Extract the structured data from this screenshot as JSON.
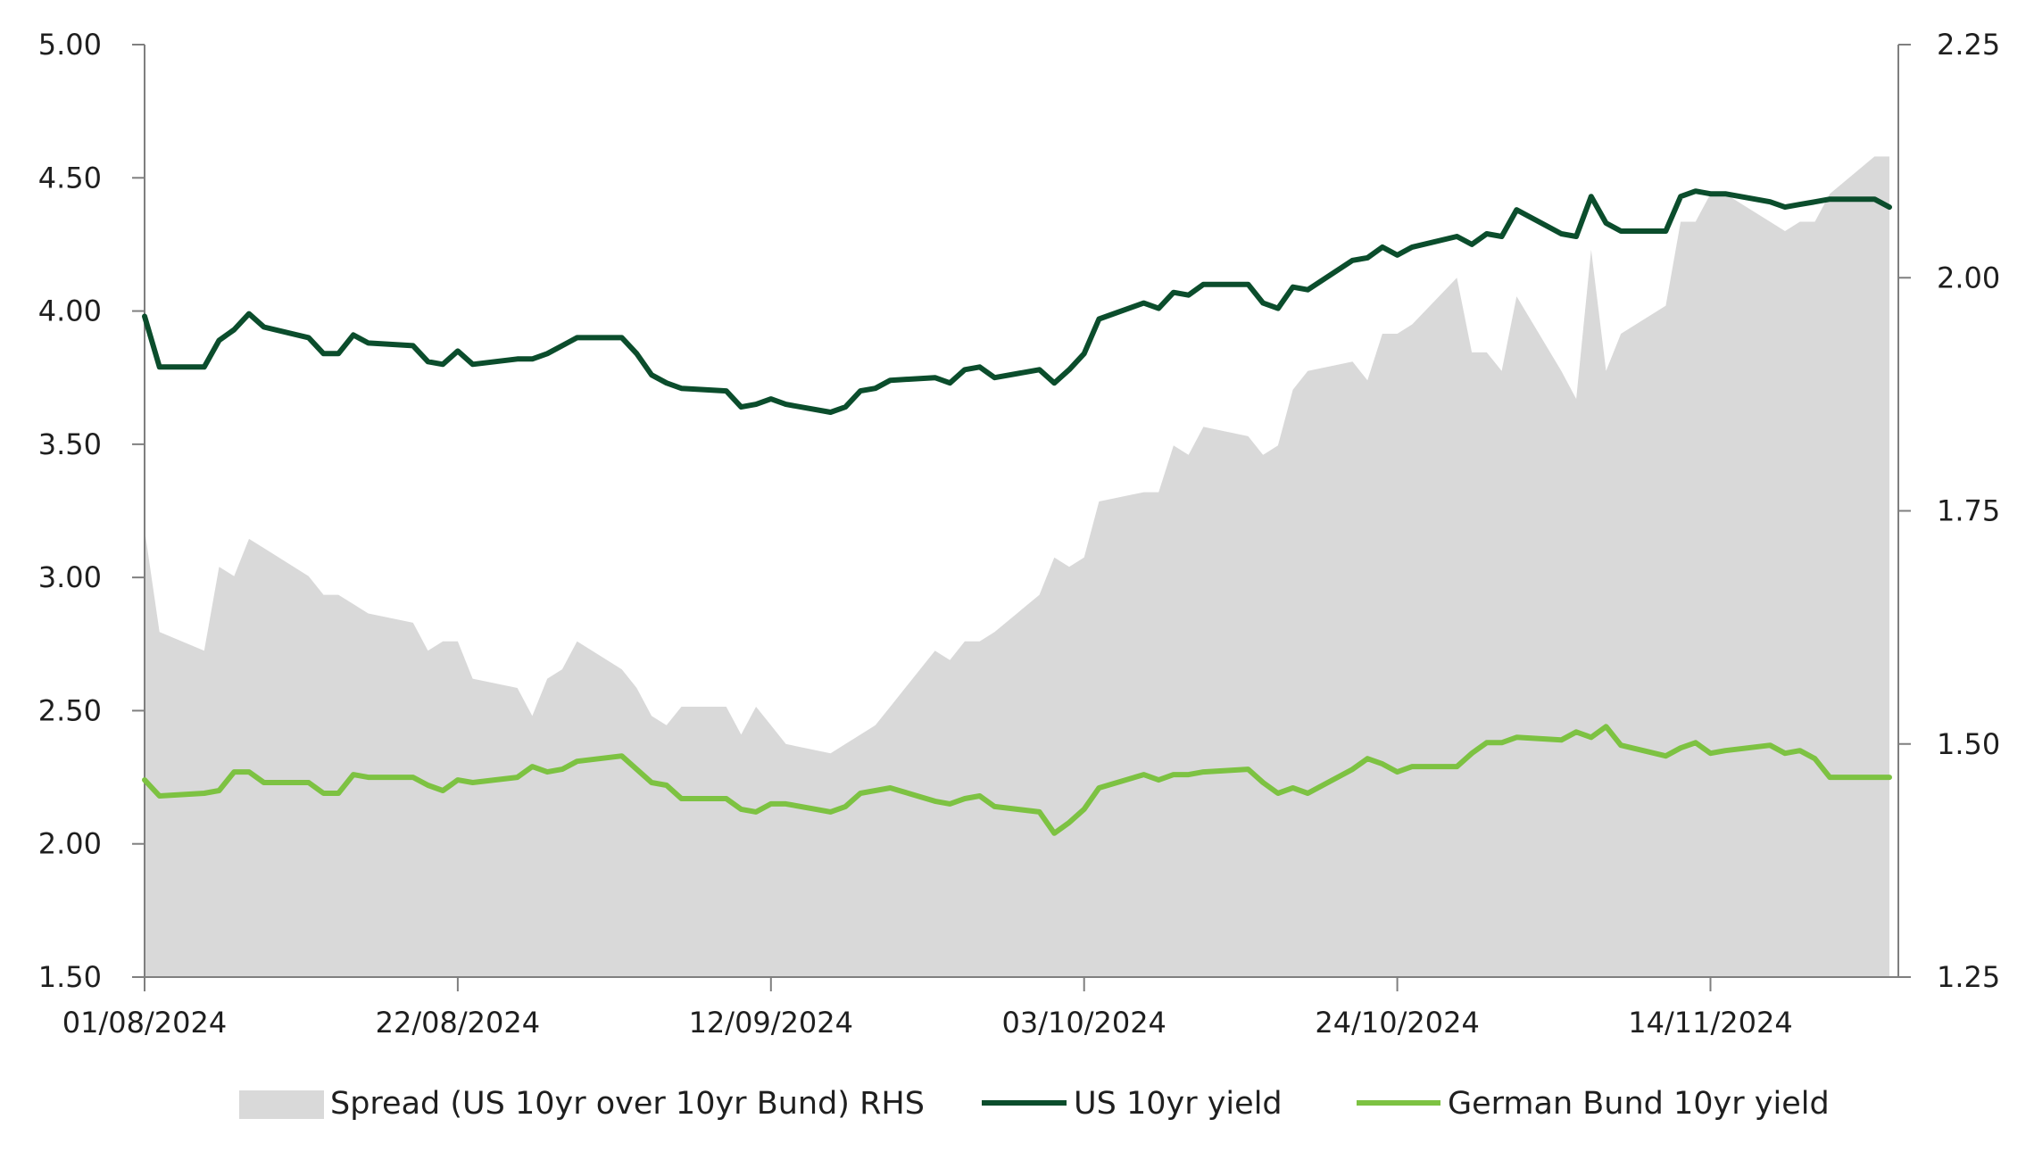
{
  "chart_data": {
    "type": "line",
    "title": "",
    "xlabel": "",
    "ylabel_left": "",
    "ylabel_right": "",
    "x_range": [
      "2024-08-01",
      "2024-11-26"
    ],
    "x_tick_labels": [
      "01/08/2024",
      "22/08/2024",
      "12/09/2024",
      "03/10/2024",
      "24/10/2024",
      "14/11/2024"
    ],
    "x_tick_dates": [
      "2024-08-01",
      "2024-08-22",
      "2024-09-12",
      "2024-10-03",
      "2024-10-24",
      "2024-11-14"
    ],
    "ylim_left": [
      1.5,
      5.0
    ],
    "y_ticks_left": [
      "1.50",
      "2.00",
      "2.50",
      "3.00",
      "3.50",
      "4.00",
      "4.50",
      "5.00"
    ],
    "ylim_right": [
      1.25,
      2.25
    ],
    "y_ticks_right": [
      "1.25",
      "1.50",
      "1.75",
      "2.00",
      "2.25"
    ],
    "grid": false,
    "legend_position": "bottom",
    "series": [
      {
        "name": "Spread (US 10yr over 10yr Bund) RHS",
        "kind": "area",
        "axis": "right",
        "color": "#d9d9d9",
        "points": [
          [
            "2024-08-01",
            1.73
          ],
          [
            "2024-08-02",
            1.62
          ],
          [
            "2024-08-05",
            1.6
          ],
          [
            "2024-08-06",
            1.69
          ],
          [
            "2024-08-07",
            1.68
          ],
          [
            "2024-08-08",
            1.72
          ],
          [
            "2024-08-09",
            1.71
          ],
          [
            "2024-08-12",
            1.68
          ],
          [
            "2024-08-13",
            1.66
          ],
          [
            "2024-08-14",
            1.66
          ],
          [
            "2024-08-15",
            1.65
          ],
          [
            "2024-08-16",
            1.64
          ],
          [
            "2024-08-19",
            1.63
          ],
          [
            "2024-08-20",
            1.6
          ],
          [
            "2024-08-21",
            1.61
          ],
          [
            "2024-08-22",
            1.61
          ],
          [
            "2024-08-23",
            1.57
          ],
          [
            "2024-08-26",
            1.56
          ],
          [
            "2024-08-27",
            1.53
          ],
          [
            "2024-08-28",
            1.57
          ],
          [
            "2024-08-29",
            1.58
          ],
          [
            "2024-08-30",
            1.61
          ],
          [
            "2024-09-02",
            1.58
          ],
          [
            "2024-09-03",
            1.56
          ],
          [
            "2024-09-04",
            1.53
          ],
          [
            "2024-09-05",
            1.52
          ],
          [
            "2024-09-06",
            1.54
          ],
          [
            "2024-09-09",
            1.54
          ],
          [
            "2024-09-10",
            1.51
          ],
          [
            "2024-09-11",
            1.54
          ],
          [
            "2024-09-12",
            1.52
          ],
          [
            "2024-09-13",
            1.5
          ],
          [
            "2024-09-16",
            1.49
          ],
          [
            "2024-09-17",
            1.5
          ],
          [
            "2024-09-18",
            1.51
          ],
          [
            "2024-09-19",
            1.52
          ],
          [
            "2024-09-20",
            1.54
          ],
          [
            "2024-09-23",
            1.6
          ],
          [
            "2024-09-24",
            1.59
          ],
          [
            "2024-09-25",
            1.61
          ],
          [
            "2024-09-26",
            1.61
          ],
          [
            "2024-09-27",
            1.62
          ],
          [
            "2024-09-30",
            1.66
          ],
          [
            "2024-10-01",
            1.7
          ],
          [
            "2024-10-02",
            1.69
          ],
          [
            "2024-10-03",
            1.7
          ],
          [
            "2024-10-04",
            1.76
          ],
          [
            "2024-10-07",
            1.77
          ],
          [
            "2024-10-08",
            1.77
          ],
          [
            "2024-10-09",
            1.82
          ],
          [
            "2024-10-10",
            1.81
          ],
          [
            "2024-10-11",
            1.84
          ],
          [
            "2024-10-14",
            1.83
          ],
          [
            "2024-10-15",
            1.81
          ],
          [
            "2024-10-16",
            1.82
          ],
          [
            "2024-10-17",
            1.88
          ],
          [
            "2024-10-18",
            1.9
          ],
          [
            "2024-10-21",
            1.91
          ],
          [
            "2024-10-22",
            1.89
          ],
          [
            "2024-10-23",
            1.94
          ],
          [
            "2024-10-24",
            1.94
          ],
          [
            "2024-10-25",
            1.95
          ],
          [
            "2024-10-28",
            2.0
          ],
          [
            "2024-10-29",
            1.92
          ],
          [
            "2024-10-30",
            1.92
          ],
          [
            "2024-10-31",
            1.9
          ],
          [
            "2024-11-01",
            1.98
          ],
          [
            "2024-11-04",
            1.9
          ],
          [
            "2024-11-05",
            1.87
          ],
          [
            "2024-11-06",
            2.03
          ],
          [
            "2024-11-07",
            1.9
          ],
          [
            "2024-11-08",
            1.94
          ],
          [
            "2024-11-11",
            1.97
          ],
          [
            "2024-11-12",
            2.06
          ],
          [
            "2024-11-13",
            2.06
          ],
          [
            "2024-11-14",
            2.09
          ],
          [
            "2024-11-15",
            2.09
          ],
          [
            "2024-11-18",
            2.06
          ],
          [
            "2024-11-19",
            2.05
          ],
          [
            "2024-11-20",
            2.06
          ],
          [
            "2024-11-21",
            2.06
          ],
          [
            "2024-11-22",
            2.09
          ],
          [
            "2024-11-25",
            2.13
          ],
          [
            "2024-11-26",
            2.13
          ]
        ]
      },
      {
        "name": "US 10yr yield",
        "kind": "line",
        "axis": "left",
        "color": "#0b4d2c",
        "points": [
          [
            "2024-08-01",
            3.98
          ],
          [
            "2024-08-02",
            3.79
          ],
          [
            "2024-08-05",
            3.79
          ],
          [
            "2024-08-06",
            3.89
          ],
          [
            "2024-08-07",
            3.93
          ],
          [
            "2024-08-08",
            3.99
          ],
          [
            "2024-08-09",
            3.94
          ],
          [
            "2024-08-12",
            3.9
          ],
          [
            "2024-08-13",
            3.84
          ],
          [
            "2024-08-14",
            3.84
          ],
          [
            "2024-08-15",
            3.91
          ],
          [
            "2024-08-16",
            3.88
          ],
          [
            "2024-08-19",
            3.87
          ],
          [
            "2024-08-20",
            3.81
          ],
          [
            "2024-08-21",
            3.8
          ],
          [
            "2024-08-22",
            3.85
          ],
          [
            "2024-08-23",
            3.8
          ],
          [
            "2024-08-26",
            3.82
          ],
          [
            "2024-08-27",
            3.82
          ],
          [
            "2024-08-28",
            3.84
          ],
          [
            "2024-08-29",
            3.87
          ],
          [
            "2024-08-30",
            3.9
          ],
          [
            "2024-09-02",
            3.9
          ],
          [
            "2024-09-03",
            3.84
          ],
          [
            "2024-09-04",
            3.76
          ],
          [
            "2024-09-05",
            3.73
          ],
          [
            "2024-09-06",
            3.71
          ],
          [
            "2024-09-09",
            3.7
          ],
          [
            "2024-09-10",
            3.64
          ],
          [
            "2024-09-11",
            3.65
          ],
          [
            "2024-09-12",
            3.67
          ],
          [
            "2024-09-13",
            3.65
          ],
          [
            "2024-09-16",
            3.62
          ],
          [
            "2024-09-17",
            3.64
          ],
          [
            "2024-09-18",
            3.7
          ],
          [
            "2024-09-19",
            3.71
          ],
          [
            "2024-09-20",
            3.74
          ],
          [
            "2024-09-23",
            3.75
          ],
          [
            "2024-09-24",
            3.73
          ],
          [
            "2024-09-25",
            3.78
          ],
          [
            "2024-09-26",
            3.79
          ],
          [
            "2024-09-27",
            3.75
          ],
          [
            "2024-09-30",
            3.78
          ],
          [
            "2024-10-01",
            3.73
          ],
          [
            "2024-10-02",
            3.78
          ],
          [
            "2024-10-03",
            3.84
          ],
          [
            "2024-10-04",
            3.97
          ],
          [
            "2024-10-07",
            4.03
          ],
          [
            "2024-10-08",
            4.01
          ],
          [
            "2024-10-09",
            4.07
          ],
          [
            "2024-10-10",
            4.06
          ],
          [
            "2024-10-11",
            4.1
          ],
          [
            "2024-10-14",
            4.1
          ],
          [
            "2024-10-15",
            4.03
          ],
          [
            "2024-10-16",
            4.01
          ],
          [
            "2024-10-17",
            4.09
          ],
          [
            "2024-10-18",
            4.08
          ],
          [
            "2024-10-21",
            4.19
          ],
          [
            "2024-10-22",
            4.2
          ],
          [
            "2024-10-23",
            4.24
          ],
          [
            "2024-10-24",
            4.21
          ],
          [
            "2024-10-25",
            4.24
          ],
          [
            "2024-10-28",
            4.28
          ],
          [
            "2024-10-29",
            4.25
          ],
          [
            "2024-10-30",
            4.29
          ],
          [
            "2024-10-31",
            4.28
          ],
          [
            "2024-11-01",
            4.38
          ],
          [
            "2024-11-04",
            4.29
          ],
          [
            "2024-11-05",
            4.28
          ],
          [
            "2024-11-06",
            4.43
          ],
          [
            "2024-11-07",
            4.33
          ],
          [
            "2024-11-08",
            4.3
          ],
          [
            "2024-11-11",
            4.3
          ],
          [
            "2024-11-12",
            4.43
          ],
          [
            "2024-11-13",
            4.45
          ],
          [
            "2024-11-14",
            4.44
          ],
          [
            "2024-11-15",
            4.44
          ],
          [
            "2024-11-18",
            4.41
          ],
          [
            "2024-11-19",
            4.39
          ],
          [
            "2024-11-20",
            4.4
          ],
          [
            "2024-11-21",
            4.41
          ],
          [
            "2024-11-22",
            4.42
          ],
          [
            "2024-11-25",
            4.42
          ],
          [
            "2024-11-26",
            4.39
          ]
        ]
      },
      {
        "name": "German Bund 10yr yield",
        "kind": "line",
        "axis": "left",
        "color": "#7dc242",
        "points": [
          [
            "2024-08-01",
            2.24
          ],
          [
            "2024-08-02",
            2.18
          ],
          [
            "2024-08-05",
            2.19
          ],
          [
            "2024-08-06",
            2.2
          ],
          [
            "2024-08-07",
            2.27
          ],
          [
            "2024-08-08",
            2.27
          ],
          [
            "2024-08-09",
            2.23
          ],
          [
            "2024-08-12",
            2.23
          ],
          [
            "2024-08-13",
            2.19
          ],
          [
            "2024-08-14",
            2.19
          ],
          [
            "2024-08-15",
            2.26
          ],
          [
            "2024-08-16",
            2.25
          ],
          [
            "2024-08-19",
            2.25
          ],
          [
            "2024-08-20",
            2.22
          ],
          [
            "2024-08-21",
            2.2
          ],
          [
            "2024-08-22",
            2.24
          ],
          [
            "2024-08-23",
            2.23
          ],
          [
            "2024-08-26",
            2.25
          ],
          [
            "2024-08-27",
            2.29
          ],
          [
            "2024-08-28",
            2.27
          ],
          [
            "2024-08-29",
            2.28
          ],
          [
            "2024-08-30",
            2.31
          ],
          [
            "2024-09-02",
            2.33
          ],
          [
            "2024-09-03",
            2.28
          ],
          [
            "2024-09-04",
            2.23
          ],
          [
            "2024-09-05",
            2.22
          ],
          [
            "2024-09-06",
            2.17
          ],
          [
            "2024-09-09",
            2.17
          ],
          [
            "2024-09-10",
            2.13
          ],
          [
            "2024-09-11",
            2.12
          ],
          [
            "2024-09-12",
            2.15
          ],
          [
            "2024-09-13",
            2.15
          ],
          [
            "2024-09-16",
            2.12
          ],
          [
            "2024-09-17",
            2.14
          ],
          [
            "2024-09-18",
            2.19
          ],
          [
            "2024-09-19",
            2.2
          ],
          [
            "2024-09-20",
            2.21
          ],
          [
            "2024-09-23",
            2.16
          ],
          [
            "2024-09-24",
            2.15
          ],
          [
            "2024-09-25",
            2.17
          ],
          [
            "2024-09-26",
            2.18
          ],
          [
            "2024-09-27",
            2.14
          ],
          [
            "2024-09-30",
            2.12
          ],
          [
            "2024-10-01",
            2.04
          ],
          [
            "2024-10-02",
            2.08
          ],
          [
            "2024-10-03",
            2.13
          ],
          [
            "2024-10-04",
            2.21
          ],
          [
            "2024-10-07",
            2.26
          ],
          [
            "2024-10-08",
            2.24
          ],
          [
            "2024-10-09",
            2.26
          ],
          [
            "2024-10-10",
            2.26
          ],
          [
            "2024-10-11",
            2.27
          ],
          [
            "2024-10-14",
            2.28
          ],
          [
            "2024-10-15",
            2.23
          ],
          [
            "2024-10-16",
            2.19
          ],
          [
            "2024-10-17",
            2.21
          ],
          [
            "2024-10-18",
            2.19
          ],
          [
            "2024-10-21",
            2.28
          ],
          [
            "2024-10-22",
            2.32
          ],
          [
            "2024-10-23",
            2.3
          ],
          [
            "2024-10-24",
            2.27
          ],
          [
            "2024-10-25",
            2.29
          ],
          [
            "2024-10-28",
            2.29
          ],
          [
            "2024-10-29",
            2.34
          ],
          [
            "2024-10-30",
            2.38
          ],
          [
            "2024-10-31",
            2.38
          ],
          [
            "2024-11-01",
            2.4
          ],
          [
            "2024-11-04",
            2.39
          ],
          [
            "2024-11-05",
            2.42
          ],
          [
            "2024-11-06",
            2.4
          ],
          [
            "2024-11-07",
            2.44
          ],
          [
            "2024-11-08",
            2.37
          ],
          [
            "2024-11-11",
            2.33
          ],
          [
            "2024-11-12",
            2.36
          ],
          [
            "2024-11-13",
            2.38
          ],
          [
            "2024-11-14",
            2.34
          ],
          [
            "2024-11-15",
            2.35
          ],
          [
            "2024-11-18",
            2.37
          ],
          [
            "2024-11-19",
            2.34
          ],
          [
            "2024-11-20",
            2.35
          ],
          [
            "2024-11-21",
            2.32
          ],
          [
            "2024-11-22",
            2.25
          ],
          [
            "2024-11-25",
            2.25
          ],
          [
            "2024-11-26",
            2.25
          ]
        ]
      }
    ]
  }
}
